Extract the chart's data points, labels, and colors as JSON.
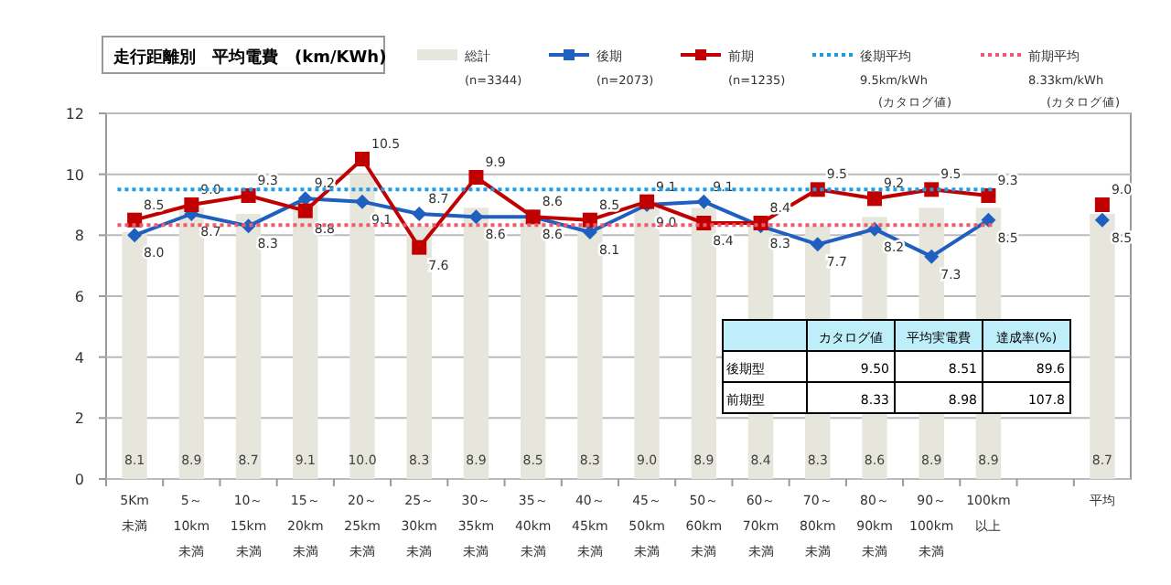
{
  "chart_data": {
    "type": "bar",
    "title": "走行距離別　平均電費　(km/KWh)",
    "categories": [
      "5Km\n未満",
      "5～\n10km\n未満",
      "10～\n15km\n未満",
      "15～\n20km\n未満",
      "20～\n25km\n未満",
      "25～\n30km\n未満",
      "30～\n35km\n未満",
      "35～\n40km\n未満",
      "40～\n45km\n未満",
      "45～\n50km\n未満",
      "50～\n60km\n未満",
      "60～\n70km\n未満",
      "70～\n80km\n未満",
      "80～\n90km\n未満",
      "90～\n100km\n未満",
      "100km\n以上",
      null,
      "平均"
    ],
    "series": [
      {
        "name": "総計",
        "color": "#e6e6dc",
        "values": [
          8.1,
          8.9,
          8.7,
          9.1,
          10.0,
          8.3,
          8.9,
          8.5,
          8.3,
          9.0,
          8.9,
          8.4,
          8.3,
          8.6,
          8.9,
          8.9,
          null,
          8.7
        ],
        "value_labels": [
          "8.1",
          "8.9",
          "8.7",
          "9.1",
          "10.0",
          "8.3",
          "8.9",
          "8.5",
          "8.3",
          "9.0",
          "8.9",
          "8.4",
          "8.3",
          "8.6",
          "8.9",
          "8.9",
          null,
          "8.7"
        ]
      },
      {
        "name": "後期",
        "type": "line",
        "color": "#1f5fbf",
        "marker": "diamond",
        "values": [
          8.0,
          8.7,
          8.3,
          9.2,
          9.1,
          8.7,
          8.6,
          8.6,
          8.1,
          9.0,
          9.1,
          8.3,
          7.7,
          8.2,
          7.3,
          8.5,
          null,
          8.5
        ],
        "value_labels": [
          "8.0",
          "8.7",
          "8.3",
          "9.2",
          "9.1",
          "8.7",
          "8.6",
          "8.6",
          "8.1",
          "9.0",
          "9.1",
          "8.3",
          "7.7",
          "8.2",
          "7.3",
          "8.5",
          null,
          "8.5"
        ]
      },
      {
        "name": "前期",
        "type": "line",
        "color": "#c00000",
        "marker": "square",
        "values": [
          8.5,
          9.0,
          9.3,
          8.8,
          10.5,
          7.6,
          9.9,
          8.6,
          8.5,
          9.1,
          8.4,
          8.4,
          9.5,
          9.2,
          9.5,
          9.3,
          null,
          9.0
        ],
        "value_labels": [
          "8.5",
          "9.0",
          "9.3",
          "8.8",
          "10.5",
          "7.6",
          "9.9",
          "8.6",
          "8.5",
          "9.1",
          "8.4",
          "8.4",
          "9.5",
          "9.2",
          "9.5",
          "9.3",
          null,
          "9.0"
        ]
      }
    ],
    "ylim": [
      0,
      12
    ],
    "yticks": [
      0,
      2,
      4,
      6,
      8,
      10,
      12
    ],
    "grid": "y",
    "legend": "top",
    "ref_lines": [
      {
        "axis": "y",
        "value": 9.5,
        "label": "後期平均",
        "color": "#1e9be6",
        "line_style": "dotted"
      },
      {
        "axis": "y",
        "value": 8.33,
        "label": "前期平均",
        "color": "#f05a6e",
        "line_style": "dotted"
      }
    ],
    "annotations": [
      "(n=3344)",
      "(n=2073)",
      "(n=1235)",
      "9.5km/kWh",
      "8.33km/kWh",
      "(カタログ値)",
      "(カタログ値)",
      "カタログ値",
      "平均実電費",
      "達成率(%)",
      "後期型",
      "9.50",
      "8.51",
      "89.6",
      "前期型",
      "8.33",
      "8.98",
      "107.8"
    ]
  }
}
